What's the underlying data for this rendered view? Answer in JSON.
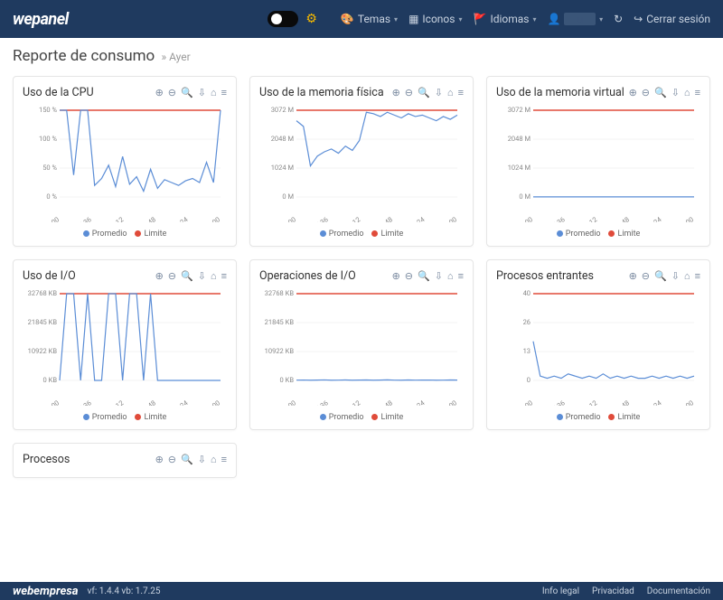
{
  "theme": {
    "topbar_bg": "#1f3a5f",
    "topbar_text": "#c9d3e0",
    "page_bg": "#ffffff",
    "card_border": "#e5e5e5",
    "axis_text": "#888888"
  },
  "topbar": {
    "logo": "wepanel",
    "gear_icon": "⚙",
    "items": [
      {
        "icon": "🎨",
        "label": "Temas"
      },
      {
        "icon": "▦",
        "label": "Iconos"
      },
      {
        "icon": "🚩",
        "label": "Idiomas"
      },
      {
        "icon": "👤",
        "label": ""
      }
    ],
    "refresh_icon": "↻",
    "logout_icon": "↪",
    "logout_label": "Cerrar sesión"
  },
  "page": {
    "title": "Reporte de consumo",
    "separator": "»",
    "subtitle": "Ayer"
  },
  "chart_common": {
    "x_labels": [
      "06/01 01:00",
      "06/01 05:36",
      "06/01 10:12",
      "06/01 14:48",
      "06/01 19:24",
      "07/01 00:00"
    ],
    "legend_avg": "Promedio",
    "legend_limit": "Limite",
    "avg_color": "#5b8dd6",
    "limit_color": "#e04b3a",
    "grid_color": "#e8e8e8",
    "line_width": 1.2,
    "label_fontsize": 7.5
  },
  "card_tools": {
    "zoom_in": "⊕",
    "zoom_out": "⊖",
    "search": "🔍",
    "download": "⇩",
    "home": "⌂",
    "menu": "≡"
  },
  "charts": [
    {
      "title": "Uso de la CPU",
      "type": "line",
      "y_labels": [
        "0 %",
        "50 %",
        "100 %",
        "150 %"
      ],
      "ylim": [
        0,
        150
      ],
      "limit_value": 150,
      "values": [
        150,
        150,
        38,
        150,
        150,
        20,
        32,
        55,
        18,
        70,
        22,
        35,
        10,
        48,
        15,
        30,
        25,
        20,
        28,
        32,
        25,
        60,
        25,
        150
      ]
    },
    {
      "title": "Uso de la memoria física",
      "type": "line",
      "y_labels": [
        "0 M",
        "1024 M",
        "2048 M",
        "3072 M"
      ],
      "ylim": [
        0,
        3072
      ],
      "limit_value": 3072,
      "values": [
        2700,
        2500,
        1100,
        1450,
        1600,
        1700,
        1550,
        1800,
        1650,
        2000,
        3000,
        2950,
        2850,
        3000,
        2900,
        2800,
        2950,
        2850,
        2900,
        2800,
        2700,
        2850,
        2750,
        2900
      ]
    },
    {
      "title": "Uso de la memoria virtual",
      "type": "line",
      "y_labels": [
        "0 M",
        "1024 M",
        "2048 M",
        "3072 M"
      ],
      "ylim": [
        0,
        3072
      ],
      "limit_value": 3072,
      "values": [
        5,
        5,
        5,
        5,
        5,
        5,
        5,
        5,
        5,
        5,
        5,
        5,
        5,
        5,
        5,
        5,
        5,
        5,
        5,
        5,
        5,
        5,
        5,
        5
      ]
    },
    {
      "title": "Uso de I/O",
      "type": "line",
      "y_labels": [
        "0 KB",
        "10922 KB",
        "21845 KB",
        "32768 KB"
      ],
      "ylim": [
        0,
        32768
      ],
      "limit_value": 32768,
      "values": [
        0,
        32768,
        32768,
        0,
        32768,
        0,
        0,
        32768,
        32768,
        0,
        32768,
        32768,
        0,
        32768,
        0,
        0,
        0,
        0,
        0,
        0,
        0,
        0,
        0,
        0
      ]
    },
    {
      "title": "Operaciones de I/O",
      "type": "line",
      "y_labels": [
        "0 KB",
        "10922 KB",
        "21845 KB",
        "32768 KB"
      ],
      "ylim": [
        0,
        32768
      ],
      "limit_value": 32768,
      "values": [
        100,
        150,
        80,
        120,
        200,
        90,
        110,
        180,
        95,
        130,
        160,
        85,
        140,
        210,
        100,
        95,
        170,
        105,
        125,
        155,
        90,
        115,
        180,
        140
      ]
    },
    {
      "title": "Procesos entrantes",
      "type": "line",
      "y_labels": [
        "0",
        "13",
        "26",
        "40"
      ],
      "ylim": [
        0,
        40
      ],
      "limit_value": 40,
      "values": [
        18,
        2,
        1,
        2,
        1,
        3,
        2,
        1,
        2,
        1,
        3,
        1,
        2,
        1,
        2,
        1,
        1,
        2,
        1,
        2,
        1,
        2,
        1,
        2
      ]
    }
  ],
  "procesos_card": {
    "title": "Procesos"
  },
  "footer": {
    "brand": "webempresa",
    "version": "vf: 1.4.4  vb: 1.7.25",
    "links": [
      "Info legal",
      "Privacidad",
      "Documentación"
    ]
  }
}
